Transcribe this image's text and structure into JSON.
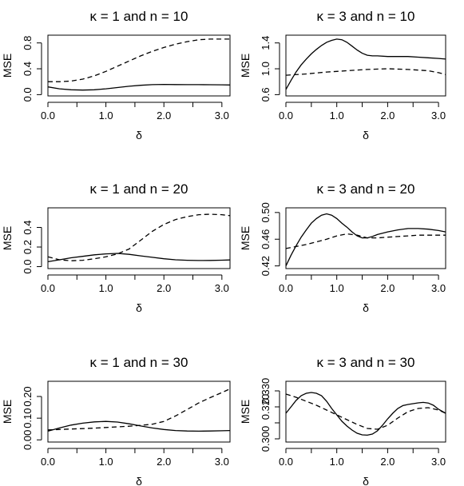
{
  "chart_data": [
    {
      "type": "line",
      "title": "κ = 1 and n = 10",
      "xlabel": "δ",
      "ylabel": "MSE",
      "xlim": [
        0,
        3.14
      ],
      "ylim": [
        -0.02,
        0.92
      ],
      "xticks": [
        0,
        1,
        2,
        3
      ],
      "xtick_labels": [
        "0.0",
        "1.0",
        "2.0",
        "3.0"
      ],
      "yticks": [
        0,
        0.4,
        0.8
      ],
      "ytick_labels": [
        "0.0",
        "0.4",
        "0.8"
      ],
      "series": [
        {
          "style": "solid",
          "x": [
            0,
            0.2,
            0.4,
            0.6,
            0.8,
            1.0,
            1.2,
            1.4,
            1.6,
            1.8,
            2.0,
            2.2,
            2.4,
            2.6,
            2.8,
            3.0,
            3.14
          ],
          "y": [
            0.12,
            0.09,
            0.075,
            0.07,
            0.075,
            0.09,
            0.11,
            0.13,
            0.145,
            0.155,
            0.158,
            0.156,
            0.155,
            0.154,
            0.153,
            0.152,
            0.15
          ]
        },
        {
          "style": "dashed",
          "x": [
            0,
            0.2,
            0.4,
            0.6,
            0.8,
            1.0,
            1.2,
            1.4,
            1.6,
            1.8,
            2.0,
            2.2,
            2.4,
            2.6,
            2.8,
            3.0,
            3.14
          ],
          "y": [
            0.2,
            0.2,
            0.21,
            0.24,
            0.29,
            0.36,
            0.44,
            0.52,
            0.6,
            0.67,
            0.73,
            0.78,
            0.82,
            0.85,
            0.86,
            0.86,
            0.86
          ]
        }
      ]
    },
    {
      "type": "line",
      "title": "κ = 3 and n = 10",
      "xlabel": "δ",
      "ylabel": "MSE",
      "xlim": [
        0,
        3.14
      ],
      "ylim": [
        0.58,
        1.52
      ],
      "xticks": [
        0,
        1,
        2,
        3
      ],
      "xtick_labels": [
        "0.0",
        "1.0",
        "2.0",
        "3.0"
      ],
      "yticks": [
        0.6,
        1.0,
        1.4
      ],
      "ytick_labels": [
        "0.6",
        "1.0",
        "1.4"
      ],
      "series": [
        {
          "style": "solid",
          "x": [
            0,
            0.1,
            0.2,
            0.3,
            0.4,
            0.5,
            0.6,
            0.7,
            0.8,
            0.9,
            1.0,
            1.1,
            1.2,
            1.3,
            1.4,
            1.5,
            1.6,
            1.7,
            1.8,
            2.0,
            2.2,
            2.4,
            2.6,
            2.8,
            3.0,
            3.14
          ],
          "y": [
            0.68,
            0.82,
            0.95,
            1.06,
            1.15,
            1.23,
            1.3,
            1.36,
            1.41,
            1.44,
            1.46,
            1.45,
            1.41,
            1.35,
            1.29,
            1.24,
            1.21,
            1.2,
            1.2,
            1.19,
            1.19,
            1.19,
            1.18,
            1.17,
            1.16,
            1.15
          ]
        },
        {
          "style": "dashed",
          "x": [
            0,
            0.4,
            0.8,
            1.2,
            1.6,
            2.0,
            2.4,
            2.8,
            3.0,
            3.14
          ],
          "y": [
            0.9,
            0.92,
            0.95,
            0.97,
            0.99,
            1.0,
            0.99,
            0.97,
            0.94,
            0.91
          ]
        }
      ]
    },
    {
      "type": "line",
      "title": "κ = 1 and n = 20",
      "xlabel": "δ",
      "ylabel": "MSE",
      "xlim": [
        0,
        3.14
      ],
      "ylim": [
        -0.02,
        0.6
      ],
      "xticks": [
        0,
        1,
        2,
        3
      ],
      "xtick_labels": [
        "0.0",
        "1.0",
        "2.0",
        "3.0"
      ],
      "yticks": [
        0,
        0.2,
        0.4
      ],
      "ytick_labels": [
        "0.0",
        "0.2",
        "0.4"
      ],
      "series": [
        {
          "style": "solid",
          "x": [
            0,
            0.2,
            0.4,
            0.6,
            0.8,
            1.0,
            1.2,
            1.4,
            1.6,
            1.8,
            2.0,
            2.2,
            2.4,
            2.6,
            2.8,
            3.0,
            3.14
          ],
          "y": [
            0.05,
            0.07,
            0.09,
            0.105,
            0.12,
            0.13,
            0.135,
            0.125,
            0.11,
            0.095,
            0.08,
            0.07,
            0.065,
            0.062,
            0.063,
            0.066,
            0.068
          ]
        },
        {
          "style": "dashed",
          "x": [
            0,
            0.2,
            0.4,
            0.6,
            0.8,
            1.0,
            1.2,
            1.4,
            1.6,
            1.8,
            2.0,
            2.2,
            2.4,
            2.6,
            2.8,
            3.0,
            3.14
          ],
          "y": [
            0.1,
            0.07,
            0.06,
            0.065,
            0.08,
            0.1,
            0.13,
            0.18,
            0.27,
            0.36,
            0.43,
            0.48,
            0.51,
            0.53,
            0.535,
            0.53,
            0.52
          ]
        }
      ]
    },
    {
      "type": "line",
      "title": "κ = 3 and n = 20",
      "xlabel": "δ",
      "ylabel": "MSE",
      "xlim": [
        0,
        3.14
      ],
      "ylim": [
        0.416,
        0.507
      ],
      "xticks": [
        0,
        1,
        2,
        3
      ],
      "xtick_labels": [
        "0.0",
        "1.0",
        "2.0",
        "3.0"
      ],
      "yticks": [
        0.42,
        0.46,
        0.5
      ],
      "ytick_labels": [
        "0.42",
        "0.46",
        "0.50"
      ],
      "series": [
        {
          "style": "solid",
          "x": [
            0,
            0.1,
            0.2,
            0.3,
            0.4,
            0.5,
            0.6,
            0.7,
            0.8,
            0.9,
            1.0,
            1.1,
            1.2,
            1.3,
            1.4,
            1.5,
            1.6,
            1.7,
            1.8,
            1.9,
            2.0,
            2.2,
            2.4,
            2.6,
            2.8,
            3.0,
            3.14
          ],
          "y": [
            0.42,
            0.436,
            0.45,
            0.463,
            0.474,
            0.484,
            0.491,
            0.496,
            0.498,
            0.496,
            0.491,
            0.484,
            0.478,
            0.471,
            0.465,
            0.462,
            0.462,
            0.464,
            0.467,
            0.469,
            0.471,
            0.474,
            0.476,
            0.476,
            0.475,
            0.473,
            0.471
          ]
        },
        {
          "style": "dashed",
          "x": [
            0,
            0.2,
            0.4,
            0.6,
            0.8,
            1.0,
            1.2,
            1.4,
            1.6,
            1.8,
            2.0,
            2.2,
            2.4,
            2.6,
            2.8,
            3.0,
            3.14
          ],
          "y": [
            0.446,
            0.449,
            0.452,
            0.456,
            0.46,
            0.465,
            0.468,
            0.466,
            0.462,
            0.462,
            0.463,
            0.464,
            0.465,
            0.466,
            0.466,
            0.466,
            0.466
          ]
        }
      ]
    },
    {
      "type": "line",
      "title": "κ = 1 and n = 30",
      "xlabel": "δ",
      "ylabel": "MSE",
      "xlim": [
        0,
        3.14
      ],
      "ylim": [
        -0.01,
        0.27
      ],
      "xticks": [
        0,
        1,
        2,
        3
      ],
      "xtick_labels": [
        "0.0",
        "1.0",
        "2.0",
        "3.0"
      ],
      "yticks": [
        0,
        0.1,
        0.2
      ],
      "ytick_labels": [
        "0.00",
        "0.10",
        "0.20"
      ],
      "series": [
        {
          "style": "solid",
          "x": [
            0,
            0.2,
            0.4,
            0.6,
            0.8,
            1.0,
            1.2,
            1.4,
            1.6,
            1.8,
            2.0,
            2.2,
            2.4,
            2.6,
            2.8,
            3.0,
            3.14
          ],
          "y": [
            0.04,
            0.055,
            0.068,
            0.077,
            0.083,
            0.085,
            0.082,
            0.074,
            0.064,
            0.055,
            0.048,
            0.043,
            0.041,
            0.04,
            0.041,
            0.042,
            0.043
          ]
        },
        {
          "style": "dashed",
          "x": [
            0,
            0.2,
            0.4,
            0.6,
            0.8,
            1.0,
            1.2,
            1.4,
            1.6,
            1.8,
            2.0,
            2.2,
            2.4,
            2.6,
            2.8,
            3.0,
            3.14
          ],
          "y": [
            0.046,
            0.048,
            0.05,
            0.052,
            0.054,
            0.057,
            0.06,
            0.063,
            0.067,
            0.072,
            0.085,
            0.11,
            0.14,
            0.17,
            0.195,
            0.218,
            0.235
          ]
        }
      ]
    },
    {
      "type": "line",
      "title": "κ = 3 and n = 30",
      "xlabel": "δ",
      "ylabel": "MSE",
      "xlim": [
        0,
        3.14
      ],
      "ylim": [
        0.298,
        0.336
      ],
      "xticks": [
        0,
        1,
        2,
        3
      ],
      "xtick_labels": [
        "0.0",
        "1.0",
        "2.0",
        "3.0"
      ],
      "yticks": [
        0.3,
        0.31,
        0.32,
        0.33
      ],
      "ytick_labels": [
        "0.300",
        "",
        "0.320",
        "0.330"
      ],
      "series": [
        {
          "style": "solid",
          "x": [
            0,
            0.1,
            0.2,
            0.3,
            0.4,
            0.5,
            0.6,
            0.7,
            0.8,
            0.9,
            1.0,
            1.1,
            1.2,
            1.3,
            1.4,
            1.5,
            1.6,
            1.7,
            1.8,
            1.9,
            2.0,
            2.1,
            2.2,
            2.3,
            2.4,
            2.5,
            2.6,
            2.7,
            2.8,
            2.9,
            3.0,
            3.14
          ],
          "y": [
            0.316,
            0.32,
            0.324,
            0.327,
            0.3285,
            0.329,
            0.3285,
            0.327,
            0.3235,
            0.319,
            0.315,
            0.311,
            0.308,
            0.3055,
            0.3035,
            0.3025,
            0.3023,
            0.303,
            0.305,
            0.3085,
            0.3125,
            0.316,
            0.319,
            0.3208,
            0.3215,
            0.322,
            0.3225,
            0.3228,
            0.3224,
            0.321,
            0.3185,
            0.316
          ]
        },
        {
          "style": "dashed",
          "x": [
            0,
            0.2,
            0.4,
            0.6,
            0.8,
            1.0,
            1.2,
            1.4,
            1.6,
            1.8,
            2.0,
            2.2,
            2.4,
            2.6,
            2.8,
            3.0,
            3.14
          ],
          "y": [
            0.328,
            0.326,
            0.3235,
            0.321,
            0.318,
            0.315,
            0.312,
            0.309,
            0.3065,
            0.306,
            0.3085,
            0.313,
            0.317,
            0.319,
            0.3195,
            0.318,
            0.316
          ]
        }
      ]
    }
  ]
}
